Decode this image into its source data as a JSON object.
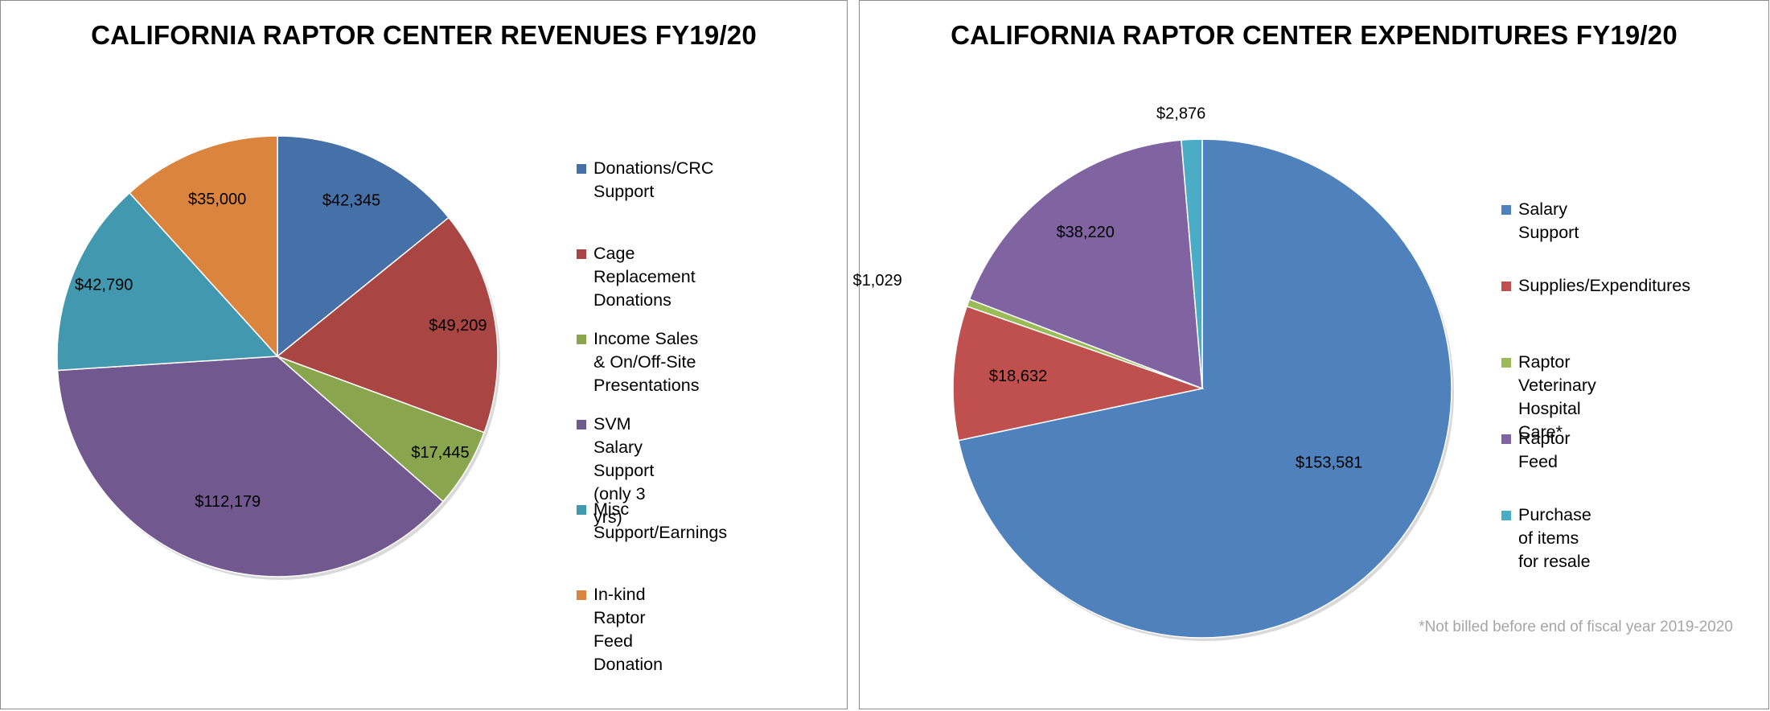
{
  "chart_data": [
    {
      "type": "pie",
      "title": "CALIFORNIA RAPTOR CENTER REVENUES FY19/20",
      "slices": [
        {
          "name": "Donations/CRC Support",
          "value": 42345,
          "label": "$42,345",
          "color": "#4570A8"
        },
        {
          "name": "Cage Replacement Donations",
          "value": 49209,
          "label": "$49,209",
          "color": "#A94644"
        },
        {
          "name": "Income Sales & On/Off-Site Presentations",
          "value": 17445,
          "label": "$17,445",
          "color": "#89A54E"
        },
        {
          "name": "SVM Salary Support (only 3 yrs)",
          "value": 112179,
          "label": "$112,179",
          "color": "#71588F"
        },
        {
          "name": "Misc Support/Earnings",
          "value": 42790,
          "label": "$42,790",
          "color": "#4298AF"
        },
        {
          "name": "In-kind Raptor Feed Donation",
          "value": 35000,
          "label": "$35,000",
          "color": "#DB843D"
        }
      ],
      "legend_lines": [
        [
          "Donations/CRC Support"
        ],
        [
          "Cage Replacement",
          "Donations"
        ],
        [
          "Income Sales & On/Off-Site",
          "Presentations"
        ],
        [
          "SVM Salary Support (only 3",
          "yrs)"
        ],
        [
          "Misc Support/Earnings"
        ],
        [
          "In-kind Raptor Feed",
          "Donation"
        ]
      ],
      "legend_position": "right"
    },
    {
      "type": "pie",
      "title": "CALIFORNIA RAPTOR CENTER EXPENDITURES FY19/20",
      "slices": [
        {
          "name": "Salary Support",
          "value": 153581,
          "label": "$153,581",
          "color": "#4F81BD"
        },
        {
          "name": "Supplies/Expenditures",
          "value": 18632,
          "label": "$18,632",
          "color": "#C0504D"
        },
        {
          "name": "Raptor Veterinary Hospital Care*",
          "value": 1029,
          "label": "$1,029",
          "color": "#9BBB59"
        },
        {
          "name": "Raptor Feed",
          "value": 38220,
          "label": "$38,220",
          "color": "#8064A2"
        },
        {
          "name": "Purchase of items for resale",
          "value": 2876,
          "label": "$2,876",
          "color": "#4BACC6"
        }
      ],
      "legend_lines": [
        [
          "Salary Support"
        ],
        [
          "Supplies/Expenditures"
        ],
        [
          "Raptor Veterinary Hospital",
          "Care*"
        ],
        [
          "Raptor Feed"
        ],
        [
          "Purchase of items for resale"
        ]
      ],
      "legend_position": "right",
      "footnote": "*Not billed before end of fiscal year 2019-2020"
    }
  ]
}
